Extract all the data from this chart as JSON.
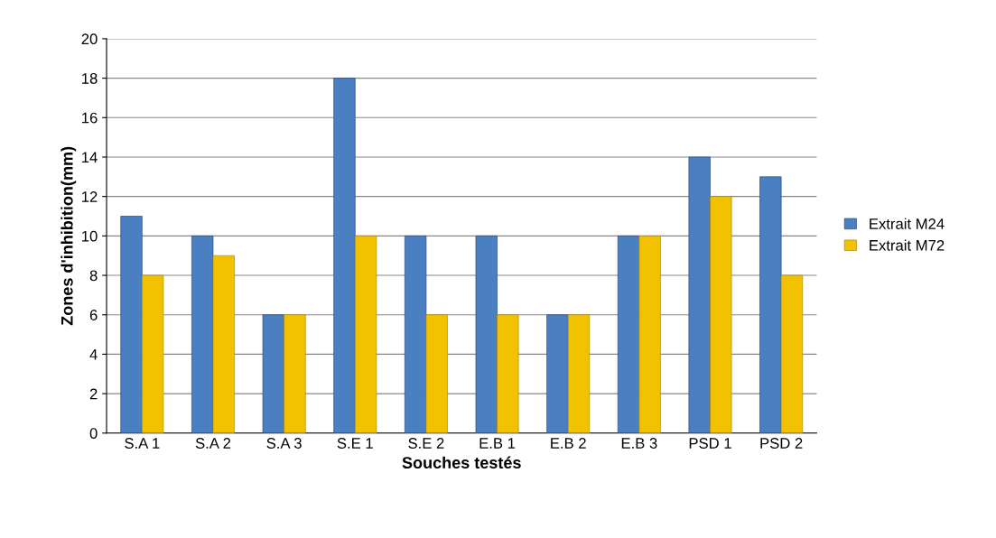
{
  "chart_data": {
    "type": "bar",
    "xlabel": "Souches testés",
    "ylabel": "Zones d'inhibition(mm)",
    "categories": [
      "S.A 1",
      "S.A 2",
      "S.A 3",
      "S.E 1",
      "S.E 2",
      "E.B 1",
      "E.B 2",
      "E.B 3",
      "PSD 1",
      "PSD 2"
    ],
    "series": [
      {
        "name": "Extrait M24",
        "color": "#4a7fc1",
        "values": [
          11,
          10,
          6,
          18,
          10,
          10,
          6,
          10,
          14,
          13
        ]
      },
      {
        "name": "Extrait M72",
        "color": "#f2c200",
        "values": [
          8,
          9,
          6,
          10,
          6,
          6,
          6,
          10,
          12,
          8
        ]
      }
    ],
    "ylim": [
      0,
      20
    ],
    "yticks": [
      0,
      2,
      4,
      6,
      8,
      10,
      12,
      14,
      16,
      18,
      20
    ],
    "grid": "y",
    "legend": "right"
  }
}
